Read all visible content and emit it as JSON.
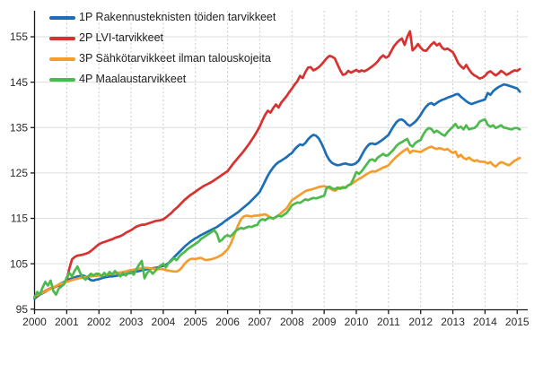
{
  "chart_data": {
    "type": "line",
    "title": "",
    "xlabel": "",
    "ylabel": "",
    "index_base_hint": "index lines starting near 97-98 in 2000",
    "x_start_year": 2000,
    "x_interval_months": 1,
    "x_tick_labels": [
      "2000",
      "2001",
      "2002",
      "2003",
      "2004",
      "2005",
      "2006",
      "2007",
      "2008",
      "2009",
      "2010",
      "2011",
      "2012",
      "2013",
      "2014",
      "2015"
    ],
    "y_ticks": [
      95,
      105,
      115,
      125,
      135,
      145,
      155
    ],
    "ylim": [
      95,
      158.5
    ],
    "xlim": [
      2000,
      2015.4
    ],
    "grid": {
      "horizontal": "solid-light-gray",
      "vertical": "dashed-light-gray"
    },
    "legend_position": "top-left-inside",
    "series": [
      {
        "label": "1P Rakennusteknisten töiden tarvikkeet",
        "color": "#1d6eb7",
        "values": [
          97.3,
          97.8,
          98.2,
          98.5,
          98.8,
          99.2,
          99.5,
          99.7,
          100.0,
          100.4,
          100.7,
          101.0,
          101.3,
          101.6,
          101.8,
          102.0,
          102.2,
          102.3,
          102.4,
          102.2,
          101.8,
          101.4,
          101.3,
          101.5,
          101.6,
          101.8,
          102.0,
          102.1,
          102.2,
          102.2,
          102.3,
          102.4,
          102.5,
          102.6,
          102.7,
          102.9,
          103.0,
          103.2,
          103.3,
          103.4,
          103.6,
          103.7,
          103.8,
          103.9,
          104.0,
          104.1,
          104.2,
          104.4,
          104.5,
          104.8,
          105.2,
          105.8,
          106.4,
          107.0,
          107.6,
          108.2,
          108.8,
          109.3,
          109.8,
          110.2,
          110.6,
          110.9,
          111.3,
          111.6,
          111.9,
          112.2,
          112.5,
          112.8,
          113.1,
          113.5,
          113.9,
          114.4,
          114.8,
          115.2,
          115.6,
          116.0,
          116.4,
          116.9,
          117.4,
          117.9,
          118.4,
          119.0,
          119.6,
          120.2,
          120.9,
          122.0,
          123.2,
          124.4,
          125.4,
          126.2,
          126.9,
          127.4,
          127.7,
          128.1,
          128.5,
          129.0,
          129.4,
          130.2,
          130.8,
          131.3,
          131.1,
          131.6,
          132.4,
          133.0,
          133.4,
          133.2,
          132.6,
          131.5,
          130.2,
          128.8,
          127.8,
          127.2,
          126.9,
          126.7,
          126.8,
          127.0,
          127.1,
          126.9,
          126.8,
          126.9,
          127.2,
          127.8,
          128.9,
          130.0,
          130.8,
          131.4,
          131.5,
          131.3,
          131.6,
          132.0,
          132.4,
          132.9,
          133.4,
          134.4,
          135.4,
          136.2,
          136.7,
          136.8,
          136.4,
          135.7,
          135.4,
          135.8,
          136.3,
          137.0,
          137.8,
          138.8,
          139.6,
          140.2,
          140.4,
          140.0,
          140.4,
          140.8,
          141.1,
          141.3,
          141.6,
          141.8,
          142.0,
          142.3,
          142.4,
          141.8,
          141.3,
          140.8,
          140.4,
          140.2,
          140.4,
          140.6,
          140.8,
          141.0,
          141.2,
          142.6,
          142.2,
          143.0,
          143.5,
          143.9,
          144.2,
          144.5,
          144.4,
          144.2,
          144.0,
          143.8,
          143.6,
          142.9
        ]
      },
      {
        "label": "2P LVI-tarvikkeet",
        "color": "#d8312f",
        "values": [
          97.6,
          98.0,
          98.4,
          98.7,
          99.0,
          99.3,
          99.6,
          99.8,
          100.0,
          100.2,
          100.4,
          100.7,
          101.2,
          104.0,
          106.0,
          106.5,
          106.8,
          106.9,
          107.0,
          107.2,
          107.4,
          107.8,
          108.3,
          108.8,
          109.3,
          109.6,
          109.8,
          110.0,
          110.2,
          110.4,
          110.7,
          110.9,
          111.1,
          111.4,
          111.8,
          112.1,
          112.4,
          112.8,
          113.2,
          113.4,
          113.6,
          113.6,
          113.8,
          114.0,
          114.2,
          114.4,
          114.5,
          114.6,
          114.8,
          115.2,
          115.7,
          116.2,
          116.8,
          117.3,
          117.9,
          118.5,
          119.1,
          119.6,
          120.1,
          120.5,
          120.9,
          121.3,
          121.7,
          122.1,
          122.4,
          122.7,
          123.0,
          123.4,
          123.8,
          124.2,
          124.6,
          125.0,
          125.4,
          126.2,
          127.0,
          127.7,
          128.4,
          129.1,
          129.8,
          130.6,
          131.4,
          132.3,
          133.2,
          134.2,
          135.3,
          136.6,
          137.8,
          138.7,
          138.3,
          139.3,
          140.1,
          139.4,
          140.5,
          141.2,
          141.9,
          142.8,
          143.6,
          144.5,
          145.2,
          146.4,
          145.9,
          147.2,
          148.2,
          148.3,
          147.6,
          147.9,
          148.3,
          148.9,
          149.6,
          150.3,
          150.8,
          150.6,
          150.2,
          148.9,
          147.6,
          146.6,
          146.8,
          147.5,
          147.1,
          147.4,
          147.7,
          147.3,
          147.6,
          147.4,
          147.7,
          148.1,
          148.5,
          149.0,
          149.6,
          150.4,
          150.9,
          150.4,
          150.7,
          151.8,
          152.9,
          153.6,
          154.2,
          154.6,
          153.2,
          155.0,
          156.2,
          152.0,
          152.6,
          153.4,
          152.6,
          152.0,
          151.9,
          152.6,
          153.3,
          153.8,
          153.1,
          153.5,
          152.6,
          152.2,
          152.4,
          152.0,
          151.6,
          150.5,
          149.2,
          148.5,
          148.0,
          148.8,
          147.8,
          147.0,
          146.5,
          146.2,
          145.8,
          146.0,
          146.4,
          147.1,
          147.4,
          146.9,
          146.5,
          146.9,
          147.5,
          147.1,
          146.6,
          146.9,
          147.3,
          147.6,
          147.5,
          147.9
        ]
      },
      {
        "label": "3P Sähkötarvikkeet ilman talouskojeita",
        "color": "#f59d2c",
        "values": [
          97.8,
          98.1,
          98.4,
          98.6,
          98.9,
          99.2,
          99.5,
          99.8,
          100.1,
          100.4,
          100.6,
          100.8,
          101.0,
          101.2,
          101.4,
          101.6,
          101.7,
          101.9,
          102.0,
          102.1,
          102.2,
          102.2,
          102.3,
          102.3,
          102.4,
          102.5,
          102.5,
          102.6,
          102.7,
          102.8,
          102.9,
          103.0,
          103.1,
          103.2,
          103.3,
          103.5,
          103.6,
          103.7,
          103.8,
          103.9,
          104.0,
          104.1,
          104.1,
          104.0,
          103.9,
          103.9,
          103.8,
          103.8,
          103.8,
          103.6,
          103.5,
          103.4,
          103.3,
          103.3,
          103.6,
          104.2,
          105.0,
          105.6,
          106.0,
          106.1,
          106.0,
          106.2,
          106.3,
          106.0,
          105.8,
          105.9,
          106.0,
          106.2,
          106.4,
          106.7,
          107.0,
          107.6,
          108.2,
          109.2,
          110.6,
          112.2,
          113.6,
          114.8,
          115.4,
          115.6,
          115.5,
          115.4,
          115.6,
          115.6,
          115.7,
          115.8,
          115.9,
          115.6,
          115.1,
          115.0,
          115.3,
          115.7,
          116.2,
          116.7,
          117.2,
          118.1,
          119.0,
          119.4,
          119.8,
          120.2,
          120.6,
          121.0,
          121.2,
          121.3,
          121.5,
          121.7,
          121.9,
          122.0,
          122.1,
          121.9,
          121.6,
          121.3,
          121.1,
          121.4,
          121.8,
          121.6,
          121.9,
          122.2,
          122.5,
          122.9,
          123.3,
          123.7,
          124.0,
          124.4,
          124.8,
          125.1,
          125.4,
          125.3,
          125.6,
          125.9,
          126.2,
          126.4,
          126.7,
          127.4,
          128.0,
          128.6,
          129.1,
          129.6,
          130.0,
          130.4,
          129.4,
          129.9,
          129.8,
          129.7,
          129.6,
          130.0,
          130.3,
          130.6,
          130.8,
          130.5,
          130.3,
          130.5,
          130.3,
          130.1,
          130.3,
          129.8,
          129.4,
          129.7,
          128.5,
          129.0,
          128.3,
          128.0,
          128.4,
          127.9,
          127.6,
          127.8,
          127.5,
          127.5,
          127.4,
          127.1,
          127.4,
          126.8,
          126.4,
          127.0,
          127.4,
          127.2,
          126.9,
          126.7,
          127.2,
          127.7,
          128.0,
          128.3
        ]
      },
      {
        "label": "4P Maalaustarvikkeet",
        "color": "#4cba4c",
        "values": [
          97.5,
          98.8,
          98.2,
          99.8,
          101.0,
          100.2,
          101.3,
          99.0,
          98.2,
          99.5,
          100.0,
          100.5,
          102.0,
          103.0,
          102.2,
          103.5,
          104.4,
          103.0,
          102.0,
          101.5,
          102.2,
          102.8,
          102.4,
          102.8,
          102.8,
          102.2,
          103.0,
          102.4,
          103.2,
          102.6,
          103.4,
          102.8,
          102.2,
          103.0,
          102.4,
          103.0,
          103.2,
          102.6,
          103.8,
          104.8,
          105.6,
          101.8,
          103.0,
          103.6,
          102.8,
          103.4,
          104.0,
          104.6,
          105.0,
          104.2,
          105.2,
          105.6,
          106.2,
          105.8,
          106.6,
          107.2,
          107.6,
          108.2,
          108.6,
          109.0,
          109.4,
          109.8,
          110.4,
          110.8,
          111.2,
          111.6,
          112.0,
          112.4,
          111.6,
          109.9,
          110.3,
          111.0,
          111.3,
          111.0,
          111.6,
          112.2,
          112.6,
          112.9,
          112.7,
          113.0,
          113.2,
          113.1,
          113.4,
          113.5,
          114.5,
          114.8,
          114.6,
          115.0,
          115.2,
          114.9,
          115.3,
          115.6,
          115.4,
          115.8,
          116.2,
          117.0,
          117.9,
          118.2,
          118.5,
          118.4,
          118.8,
          119.2,
          119.0,
          119.3,
          119.5,
          119.4,
          119.6,
          119.8,
          120.0,
          121.8,
          122.0,
          121.6,
          121.4,
          121.8,
          121.5,
          121.9,
          121.7,
          122.3,
          122.6,
          123.8,
          125.2,
          124.8,
          125.4,
          126.2,
          127.0,
          127.8,
          128.0,
          127.6,
          128.4,
          128.8,
          129.2,
          128.8,
          129.0,
          129.6,
          130.2,
          131.0,
          131.5,
          131.8,
          132.2,
          132.5,
          131.2,
          130.8,
          131.6,
          132.0,
          132.3,
          133.5,
          134.4,
          134.9,
          134.7,
          133.9,
          134.3,
          133.9,
          133.5,
          133.2,
          134.0,
          134.6,
          135.2,
          135.8,
          134.9,
          135.2,
          134.6,
          135.5,
          134.6,
          134.8,
          134.9,
          135.4,
          136.3,
          136.6,
          136.8,
          135.6,
          135.2,
          135.5,
          134.9,
          135.2,
          135.5,
          135.0,
          134.9,
          134.7,
          134.6,
          134.9,
          134.9,
          134.6
        ]
      }
    ]
  }
}
